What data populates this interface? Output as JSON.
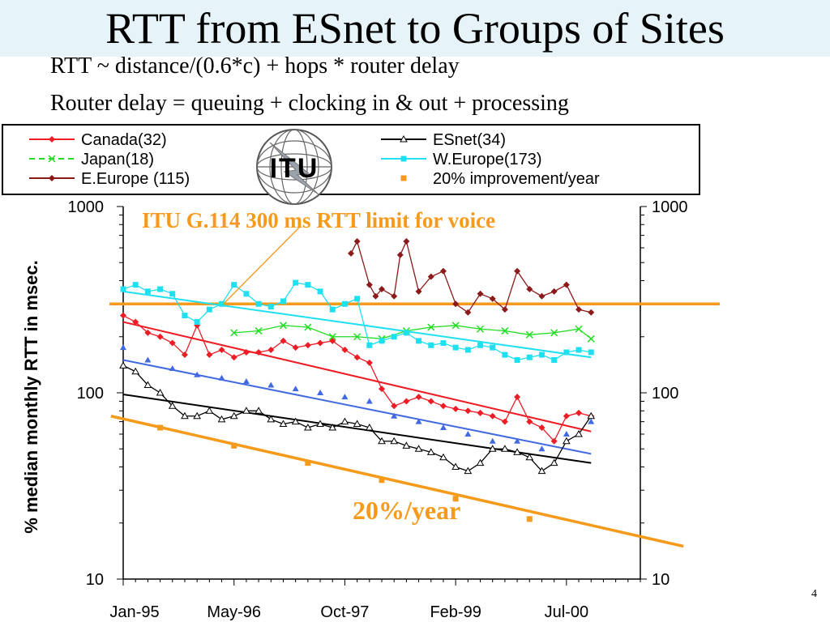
{
  "slide": {
    "title": "RTT from ESnet to Groups of Sites",
    "line1": "RTT ~ distance/(0.6*c) + hops * router delay",
    "line2": "Router delay = queuing + clocking in & out + processing",
    "page_number": "4"
  },
  "logo": {
    "text": "ITU"
  },
  "colors": {
    "canada": "#ee1c25",
    "japan": "#22dd22",
    "eeurope": "#8b1a1a",
    "esnet": "#000000",
    "weurope": "#1ee0f0",
    "improvement": "#f59a1b",
    "blue_series": "#4169e1",
    "title_bg": "#e6f3f8"
  },
  "chart_data": {
    "type": "line",
    "scale": "log",
    "ylabel": "% median monthly RTT in msec.",
    "ylim": [
      10,
      1000
    ],
    "yticks": [
      "1000",
      "100",
      "10"
    ],
    "xticks": [
      "Jan-95",
      "May-96",
      "Oct-97",
      "Feb-99",
      "Jul-00"
    ],
    "x_months": [
      "1995-01",
      "2001-06"
    ],
    "annotations": {
      "limit": "ITU G.114 300 ms RTT limit for voice",
      "rate": "20%/year"
    },
    "legend": [
      {
        "key": "canada",
        "label": "Canada(32)",
        "marker": "diamond",
        "dashed": false
      },
      {
        "key": "japan",
        "label": "Japan(18)",
        "marker": "x",
        "dashed": true
      },
      {
        "key": "eeurope",
        "label": "E.Europe (115)",
        "marker": "diamond",
        "dashed": false
      },
      {
        "key": "esnet",
        "label": "ESnet(34)",
        "marker": "triangle-open",
        "dashed": false
      },
      {
        "key": "weurope",
        "label": "W.Europe(173)",
        "marker": "square",
        "dashed": false
      },
      {
        "key": "improvement",
        "label": "20% improvement/year",
        "marker": "square-only",
        "dashed": false
      }
    ],
    "limit_line": {
      "value": 300
    },
    "series": [
      {
        "key": "canada",
        "x": [
          0,
          2,
          4,
          6,
          8,
          10,
          12,
          14,
          16,
          18,
          20,
          22,
          24,
          26,
          28,
          30,
          32,
          34,
          36,
          38,
          40,
          42,
          44,
          46,
          48,
          50,
          52,
          54,
          56,
          58,
          60,
          62,
          64,
          66,
          68,
          70,
          72,
          74,
          76
        ],
        "values": [
          260,
          240,
          210,
          200,
          185,
          160,
          230,
          160,
          170,
          155,
          165,
          165,
          170,
          190,
          175,
          180,
          185,
          190,
          170,
          155,
          145,
          105,
          85,
          90,
          95,
          90,
          85,
          82,
          80,
          78,
          75,
          70,
          95,
          70,
          65,
          55,
          75,
          78,
          75
        ]
      },
      {
        "key": "blue_series",
        "x": [
          0,
          4,
          8,
          12,
          16,
          20,
          24,
          28,
          32,
          36,
          40,
          44,
          48,
          52,
          56,
          60,
          64,
          68,
          72,
          76
        ],
        "values": [
          175,
          150,
          135,
          125,
          120,
          115,
          110,
          105,
          100,
          95,
          90,
          75,
          70,
          65,
          60,
          55,
          55,
          50,
          60,
          70
        ]
      },
      {
        "key": "esnet",
        "x": [
          0,
          2,
          4,
          6,
          8,
          10,
          12,
          14,
          16,
          18,
          20,
          22,
          24,
          26,
          28,
          30,
          32,
          34,
          36,
          38,
          40,
          42,
          44,
          46,
          48,
          50,
          52,
          54,
          56,
          58,
          60,
          62,
          64,
          66,
          68,
          70,
          72,
          74,
          76
        ],
        "values": [
          140,
          130,
          110,
          100,
          85,
          75,
          75,
          80,
          72,
          75,
          80,
          80,
          72,
          68,
          70,
          65,
          68,
          65,
          70,
          68,
          65,
          55,
          55,
          52,
          50,
          48,
          45,
          40,
          38,
          42,
          50,
          50,
          48,
          45,
          38,
          42,
          55,
          60,
          75
        ]
      },
      {
        "key": "japan",
        "x": [
          18,
          22,
          26,
          30,
          34,
          38,
          42,
          46,
          50,
          54,
          58,
          62,
          66,
          70,
          74,
          76
        ],
        "values": [
          210,
          215,
          230,
          225,
          200,
          200,
          195,
          215,
          225,
          230,
          220,
          215,
          205,
          210,
          220,
          195
        ]
      },
      {
        "key": "weurope",
        "x": [
          0,
          2,
          4,
          6,
          8,
          10,
          12,
          14,
          16,
          18,
          20,
          22,
          24,
          26,
          28,
          30,
          32,
          34,
          36,
          38,
          40,
          42,
          44,
          46,
          48,
          50,
          52,
          54,
          56,
          58,
          60,
          62,
          64,
          66,
          68,
          70,
          72,
          74,
          76
        ],
        "values": [
          360,
          380,
          350,
          360,
          340,
          260,
          240,
          280,
          300,
          380,
          340,
          300,
          290,
          310,
          390,
          380,
          350,
          280,
          300,
          320,
          180,
          190,
          200,
          210,
          190,
          180,
          185,
          175,
          170,
          180,
          175,
          160,
          150,
          155,
          160,
          150,
          165,
          170,
          165
        ]
      },
      {
        "key": "eeurope",
        "x": [
          37,
          38,
          40,
          41,
          42,
          44,
          45,
          46,
          48,
          50,
          52,
          54,
          56,
          58,
          60,
          62,
          64,
          66,
          68,
          70,
          72,
          74,
          76
        ],
        "values": [
          560,
          650,
          380,
          330,
          360,
          330,
          550,
          650,
          350,
          420,
          450,
          300,
          270,
          340,
          320,
          280,
          450,
          360,
          330,
          350,
          380,
          280,
          270
        ]
      }
    ],
    "trends": [
      {
        "key": "canada",
        "x": [
          0,
          76
        ],
        "values": [
          240,
          62
        ]
      },
      {
        "key": "blue_series",
        "x": [
          0,
          76
        ],
        "values": [
          150,
          47
        ]
      },
      {
        "key": "esnet",
        "x": [
          0,
          76
        ],
        "values": [
          98,
          42
        ]
      },
      {
        "key": "weurope",
        "x": [
          0,
          76
        ],
        "values": [
          350,
          155
        ]
      },
      {
        "key": "improvement",
        "x": [
          -2,
          91
        ],
        "values": [
          75,
          15
        ]
      }
    ],
    "improvement_points": {
      "x": [
        6,
        18,
        30,
        42,
        54,
        66
      ],
      "values": [
        65,
        52,
        42,
        34,
        27,
        21
      ]
    }
  }
}
